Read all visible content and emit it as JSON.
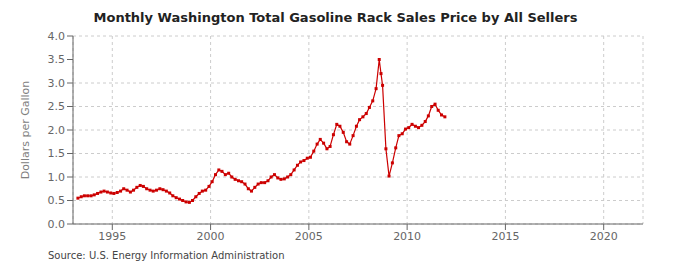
{
  "chart_data": {
    "type": "line",
    "title": "Monthly Washington Total Gasoline Rack Sales Price by All Sellers",
    "y_label": "Dollars per Gallon",
    "annotations": [
      "Source: U.S. Energy Information Administration"
    ],
    "color": "#CC0000",
    "marker": "square",
    "line_style": "solid",
    "grid": true,
    "xlim": [
      1993.0,
      2022.0
    ],
    "ylim": [
      0.0,
      4.0
    ],
    "xticks": [
      1995,
      2000,
      2005,
      2010,
      2015,
      2020
    ],
    "yticks": [
      {
        "value": 0,
        "label": "0.0"
      },
      0.5,
      {
        "value": 1,
        "label": "1.0"
      },
      1.5,
      {
        "value": 2,
        "label": "2.0"
      },
      2.5,
      {
        "value": 3,
        "label": "3.0"
      },
      3.5,
      {
        "value": 4,
        "label": "4.0"
      }
    ],
    "x": [
      1993.25,
      1993.42,
      1993.58,
      1993.75,
      1993.92,
      1994.08,
      1994.25,
      1994.42,
      1994.58,
      1994.75,
      1994.92,
      1995.08,
      1995.25,
      1995.42,
      1995.58,
      1995.75,
      1995.92,
      1996.08,
      1996.25,
      1996.42,
      1996.58,
      1996.75,
      1996.92,
      1997.08,
      1997.25,
      1997.42,
      1997.58,
      1997.75,
      1997.92,
      1998.08,
      1998.25,
      1998.42,
      1998.58,
      1998.75,
      1998.92,
      1999.08,
      1999.25,
      1999.42,
      1999.58,
      1999.75,
      1999.92,
      2000.08,
      2000.25,
      2000.42,
      2000.58,
      2000.75,
      2000.92,
      2001.08,
      2001.25,
      2001.42,
      2001.58,
      2001.75,
      2001.92,
      2002.08,
      2002.25,
      2002.42,
      2002.58,
      2002.75,
      2002.92,
      2003.08,
      2003.25,
      2003.42,
      2003.58,
      2003.75,
      2003.92,
      2004.08,
      2004.25,
      2004.42,
      2004.58,
      2004.75,
      2004.92,
      2005.08,
      2005.25,
      2005.42,
      2005.58,
      2005.75,
      2005.92,
      2006.08,
      2006.25,
      2006.42,
      2006.58,
      2006.75,
      2006.92,
      2007.08,
      2007.25,
      2007.42,
      2007.58,
      2007.75,
      2007.92,
      2008.08,
      2008.25,
      2008.42,
      2008.58,
      2008.67,
      2008.75,
      2008.92,
      2009.08,
      2009.25,
      2009.42,
      2009.58,
      2009.75,
      2009.92,
      2010.08,
      2010.25,
      2010.42,
      2010.58,
      2010.75,
      2010.92,
      2011.08,
      2011.25,
      2011.42,
      2011.58,
      2011.75,
      2011.92
    ],
    "values": [
      0.55,
      0.58,
      0.6,
      0.6,
      0.6,
      0.62,
      0.65,
      0.68,
      0.7,
      0.68,
      0.66,
      0.65,
      0.67,
      0.7,
      0.75,
      0.72,
      0.68,
      0.72,
      0.78,
      0.82,
      0.8,
      0.75,
      0.72,
      0.7,
      0.72,
      0.75,
      0.73,
      0.7,
      0.66,
      0.6,
      0.56,
      0.53,
      0.5,
      0.47,
      0.46,
      0.5,
      0.58,
      0.65,
      0.7,
      0.72,
      0.8,
      0.9,
      1.05,
      1.15,
      1.12,
      1.05,
      1.08,
      1.0,
      0.95,
      0.92,
      0.9,
      0.85,
      0.75,
      0.7,
      0.78,
      0.85,
      0.88,
      0.88,
      0.92,
      1.0,
      1.05,
      0.98,
      0.95,
      0.96,
      1.0,
      1.05,
      1.15,
      1.25,
      1.32,
      1.35,
      1.4,
      1.42,
      1.55,
      1.7,
      1.8,
      1.72,
      1.6,
      1.65,
      1.9,
      2.12,
      2.08,
      1.95,
      1.75,
      1.7,
      1.88,
      2.08,
      2.22,
      2.28,
      2.35,
      2.48,
      2.62,
      2.88,
      3.5,
      3.2,
      2.95,
      1.6,
      1.02,
      1.3,
      1.62,
      1.88,
      1.92,
      2.02,
      2.05,
      2.12,
      2.08,
      2.05,
      2.1,
      2.18,
      2.3,
      2.5,
      2.55,
      2.42,
      2.32,
      2.28
    ]
  }
}
